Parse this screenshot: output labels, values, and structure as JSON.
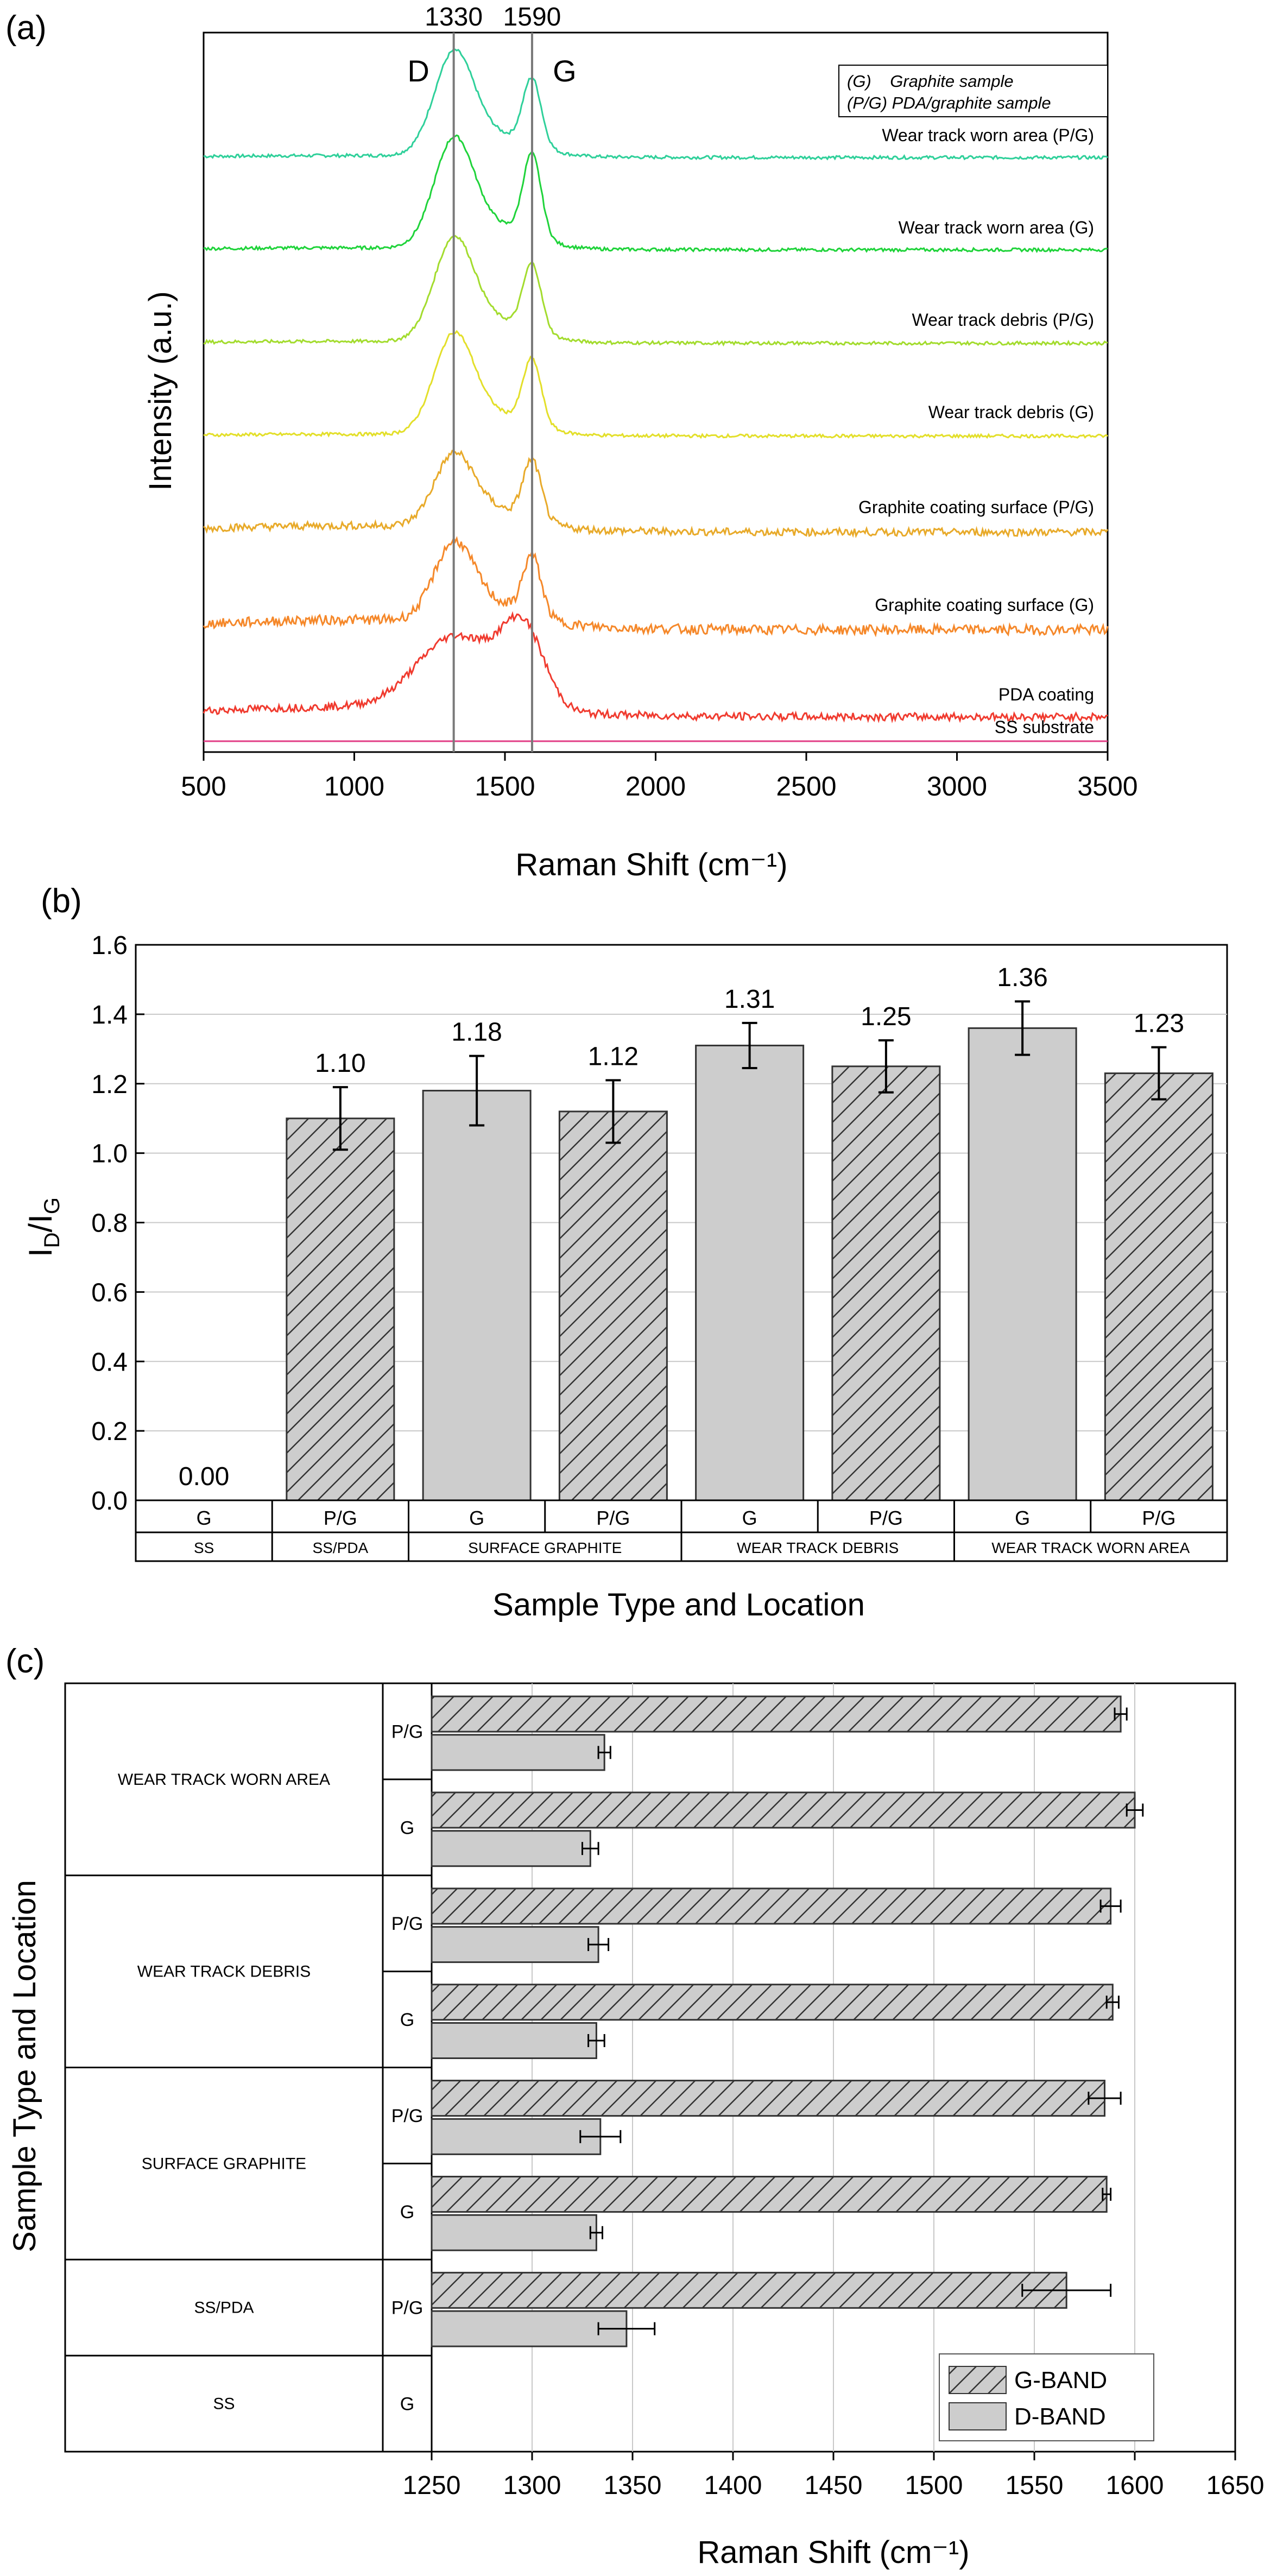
{
  "chart_data": [
    {
      "panel": "(a)",
      "type": "line",
      "title": "",
      "xlabel": "Raman Shift (cm⁻¹)",
      "ylabel": "Intensity (a.u.)",
      "xlim": [
        500,
        3500
      ],
      "xticks": [
        500,
        1000,
        1500,
        2000,
        2500,
        3000,
        3500
      ],
      "reference_lines": [
        {
          "x": 1330,
          "value_label": "1330",
          "band_label": "D"
        },
        {
          "x": 1590,
          "value_label": "1590",
          "band_label": "G"
        }
      ],
      "legend": [
        "(G)    Graphite sample",
        "(P/G) PDA/graphite sample"
      ],
      "series": [
        {
          "name": "Wear track worn area (P/G)",
          "color": "#2fd09a",
          "d": 1.0,
          "g": 0.7,
          "bg": 0.02
        },
        {
          "name": "Wear track worn area (G)",
          "color": "#1fd33a",
          "d": 1.0,
          "g": 0.82,
          "bg": 0.02
        },
        {
          "name": "Wear track debris (P/G)",
          "color": "#a3dc2e",
          "d": 1.0,
          "g": 0.7,
          "bg": 0.02
        },
        {
          "name": "Wear track debris (G)",
          "color": "#e3df2a",
          "d": 1.0,
          "g": 0.7,
          "bg": 0.02
        },
        {
          "name": "Graphite coating surface (P/G)",
          "color": "#e8aa2a",
          "d": 0.8,
          "g": 0.72,
          "bg": 0.08
        },
        {
          "name": "Graphite coating surface (G)",
          "color": "#f5882a",
          "d": 0.85,
          "g": 0.7,
          "bg": 0.12
        },
        {
          "name": "PDA coating",
          "color": "#f03b2f",
          "d": 0.9,
          "g": 1.0,
          "bg": 0.1
        },
        {
          "name": "SS substrate",
          "color": "#e23d86",
          "d": 0,
          "g": 0,
          "bg": 0
        }
      ]
    },
    {
      "panel": "(b)",
      "type": "bar",
      "xlabel": "Sample Type and Location",
      "ylabel": "I_D/I_G",
      "ylim": [
        0.0,
        1.6
      ],
      "yticks": [
        0.0,
        0.2,
        0.4,
        0.6,
        0.8,
        1.0,
        1.2,
        1.4,
        1.6
      ],
      "yticklabels": [
        "0.0",
        "0.2",
        "0.4",
        "0.6",
        "0.8",
        "1.0",
        "1.2",
        "1.4",
        "1.6"
      ],
      "categories": [
        "G",
        "P/G",
        "G",
        "P/G",
        "G",
        "P/G",
        "G",
        "P/G"
      ],
      "groups": [
        {
          "label": "SS",
          "span": 1
        },
        {
          "label": "SS/PDA",
          "span": 1
        },
        {
          "label": "SURFACE GRAPHITE",
          "span": 2
        },
        {
          "label": "WEAR TRACK DEBRIS",
          "span": 2
        },
        {
          "label": "WEAR TRACK WORN AREA",
          "span": 2
        }
      ],
      "values": [
        0.0,
        1.1,
        1.18,
        1.12,
        1.31,
        1.25,
        1.36,
        1.23
      ],
      "value_labels": [
        "0.00",
        "1.10",
        "1.18",
        "1.12",
        "1.31",
        "1.25",
        "1.36",
        "1.23"
      ],
      "errors": [
        0,
        0.09,
        0.1,
        0.09,
        0.065,
        0.075,
        0.077,
        0.075
      ],
      "hatched": [
        false,
        true,
        false,
        true,
        false,
        true,
        false,
        true
      ]
    },
    {
      "panel": "(c)",
      "type": "bar",
      "orientation": "horizontal",
      "xlabel": "Raman Shift (cm⁻¹)",
      "ylabel": "Sample Type and Location",
      "xlim": [
        1250,
        1650
      ],
      "xticks": [
        1250,
        1300,
        1350,
        1400,
        1450,
        1500,
        1550,
        1600,
        1650
      ],
      "legend": [
        "G-BAND",
        "D-BAND"
      ],
      "categories": [
        "P/G",
        "G",
        "P/G",
        "G",
        "P/G",
        "G",
        "P/G",
        "G"
      ],
      "groups": [
        {
          "label": "WEAR TRACK WORN AREA",
          "span": 2
        },
        {
          "label": "WEAR TRACK DEBRIS",
          "span": 2
        },
        {
          "label": "SURFACE GRAPHITE",
          "span": 2
        },
        {
          "label": "SS/PDA",
          "span": 1
        },
        {
          "label": "SS",
          "span": 1
        }
      ],
      "series": [
        {
          "name": "G-BAND",
          "values": [
            1593,
            1600,
            1588,
            1589,
            1585,
            1586,
            1566,
            null
          ],
          "errors": [
            3,
            4,
            5,
            3,
            8,
            2,
            22,
            0
          ]
        },
        {
          "name": "D-BAND",
          "values": [
            1336,
            1329,
            1333,
            1332,
            1334,
            1332,
            1347,
            null
          ],
          "errors": [
            3,
            4,
            5,
            4,
            10,
            3,
            14,
            0
          ]
        }
      ]
    }
  ]
}
